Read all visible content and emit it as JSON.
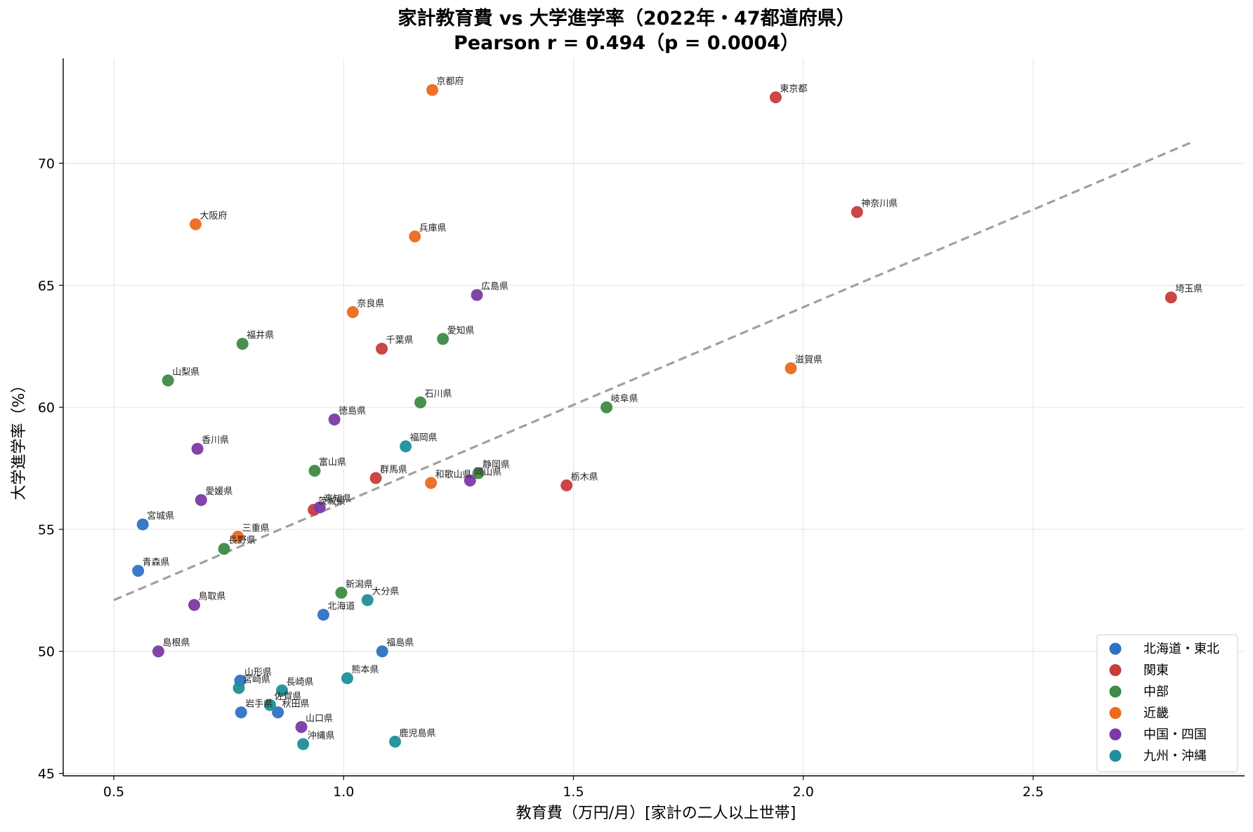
{
  "chart_data": {
    "type": "scatter",
    "title": "家計教育費 vs 大学進学率（2022年・47都道府県）",
    "subtitle": "Pearson r = 0.494（p = 0.0004）",
    "xlabel": "教育費（万円/月）[家計の二人以上世帯]",
    "ylabel": "大学進学率（%）",
    "xlim": [
      0.39,
      2.96
    ],
    "ylim": [
      44.9,
      74.3
    ],
    "xticks": [
      0.5,
      1.0,
      1.5,
      2.0,
      2.5
    ],
    "yticks": [
      45,
      50,
      55,
      60,
      65,
      70
    ],
    "grid": true,
    "legend_position": "bottom-right",
    "trendline": {
      "style": "dashed",
      "color": "#a0a0a0",
      "x": [
        0.5,
        2.85
      ],
      "y": [
        52.1,
        70.9
      ]
    },
    "series": [
      {
        "name": "北海道・東北",
        "color": "#2f72c4",
        "points": [
          {
            "label": "北海道",
            "x": 0.956,
            "y": 51.5
          },
          {
            "label": "青森県",
            "x": 0.553,
            "y": 53.3
          },
          {
            "label": "岩手県",
            "x": 0.777,
            "y": 47.5
          },
          {
            "label": "宮城県",
            "x": 0.563,
            "y": 55.2
          },
          {
            "label": "秋田県",
            "x": 0.857,
            "y": 47.5
          },
          {
            "label": "山形県",
            "x": 0.775,
            "y": 48.8
          },
          {
            "label": "福島県",
            "x": 1.084,
            "y": 50.0
          }
        ]
      },
      {
        "name": "関東",
        "color": "#c83c3c",
        "points": [
          {
            "label": "茨城県",
            "x": 0.935,
            "y": 55.8
          },
          {
            "label": "栃木県",
            "x": 1.485,
            "y": 56.8
          },
          {
            "label": "群馬県",
            "x": 1.07,
            "y": 57.1
          },
          {
            "label": "埼玉県",
            "x": 2.8,
            "y": 64.5
          },
          {
            "label": "千葉県",
            "x": 1.083,
            "y": 62.4
          },
          {
            "label": "東京都",
            "x": 1.94,
            "y": 72.7
          },
          {
            "label": "神奈川県",
            "x": 2.117,
            "y": 68.0
          }
        ]
      },
      {
        "name": "中部",
        "color": "#3f8a45",
        "points": [
          {
            "label": "新潟県",
            "x": 0.995,
            "y": 52.4
          },
          {
            "label": "富山県",
            "x": 0.937,
            "y": 57.4
          },
          {
            "label": "石川県",
            "x": 1.167,
            "y": 60.2
          },
          {
            "label": "福井県",
            "x": 0.78,
            "y": 62.6
          },
          {
            "label": "山梨県",
            "x": 0.618,
            "y": 61.1
          },
          {
            "label": "長野県",
            "x": 0.74,
            "y": 54.2
          },
          {
            "label": "岐阜県",
            "x": 1.572,
            "y": 60.0
          },
          {
            "label": "静岡県",
            "x": 1.293,
            "y": 57.3
          },
          {
            "label": "愛知県",
            "x": 1.216,
            "y": 62.8
          }
        ]
      },
      {
        "name": "近畿",
        "color": "#eb6a1e",
        "points": [
          {
            "label": "三重県",
            "x": 0.77,
            "y": 54.7
          },
          {
            "label": "滋賀県",
            "x": 1.973,
            "y": 61.6
          },
          {
            "label": "京都府",
            "x": 1.193,
            "y": 73.0
          },
          {
            "label": "大阪府",
            "x": 0.678,
            "y": 67.5
          },
          {
            "label": "兵庫県",
            "x": 1.155,
            "y": 67.0
          },
          {
            "label": "奈良県",
            "x": 1.02,
            "y": 63.9
          },
          {
            "label": "和歌山県",
            "x": 1.19,
            "y": 56.9
          }
        ]
      },
      {
        "name": "中国・四国",
        "color": "#7b3aa6",
        "points": [
          {
            "label": "鳥取県",
            "x": 0.675,
            "y": 51.9
          },
          {
            "label": "島根県",
            "x": 0.597,
            "y": 50.0
          },
          {
            "label": "岡山県",
            "x": 1.275,
            "y": 57.0
          },
          {
            "label": "広島県",
            "x": 1.29,
            "y": 64.6
          },
          {
            "label": "山口県",
            "x": 0.908,
            "y": 46.9
          },
          {
            "label": "徳島県",
            "x": 0.98,
            "y": 59.5
          },
          {
            "label": "香川県",
            "x": 0.682,
            "y": 58.3
          },
          {
            "label": "愛媛県",
            "x": 0.69,
            "y": 56.2
          },
          {
            "label": "高知県",
            "x": 0.948,
            "y": 55.9
          }
        ]
      },
      {
        "name": "九州・沖縄",
        "color": "#1f8f99",
        "points": [
          {
            "label": "福岡県",
            "x": 1.135,
            "y": 58.4
          },
          {
            "label": "佐賀県",
            "x": 0.84,
            "y": 47.8
          },
          {
            "label": "長崎県",
            "x": 0.866,
            "y": 48.4
          },
          {
            "label": "熊本県",
            "x": 1.008,
            "y": 48.9
          },
          {
            "label": "大分県",
            "x": 1.052,
            "y": 52.1
          },
          {
            "label": "宮崎県",
            "x": 0.772,
            "y": 48.5
          },
          {
            "label": "鹿児島県",
            "x": 1.112,
            "y": 46.3
          },
          {
            "label": "沖縄県",
            "x": 0.912,
            "y": 46.2
          }
        ]
      }
    ]
  }
}
